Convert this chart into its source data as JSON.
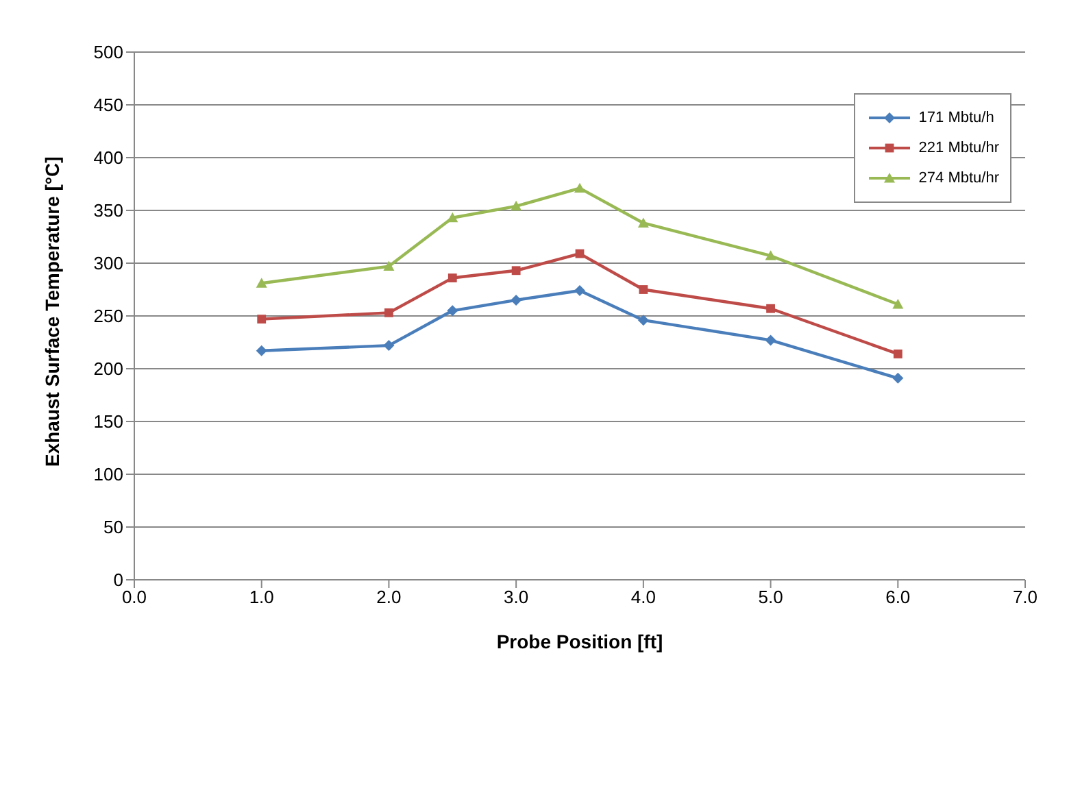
{
  "chart_data": {
    "type": "line",
    "xlabel": "Probe Position [ft]",
    "ylabel": "Exhaust Surface Temperature [°C]",
    "x": [
      1.0,
      2.0,
      2.5,
      3.0,
      3.5,
      4.0,
      5.0,
      6.0
    ],
    "series": [
      {
        "name": "171 Mbtu/h",
        "color": "#4a7ebb",
        "marker": "diamond",
        "values": [
          217,
          222,
          255,
          265,
          274,
          246,
          227,
          191
        ]
      },
      {
        "name": "221 Mbtu/hr",
        "color": "#be4b48",
        "marker": "square",
        "values": [
          247,
          253,
          286,
          293,
          309,
          275,
          257,
          214
        ]
      },
      {
        "name": "274 Mbtu/hr",
        "color": "#98b954",
        "marker": "triangle",
        "values": [
          281,
          297,
          343,
          354,
          371,
          338,
          307,
          261
        ]
      }
    ],
    "xlim": [
      0,
      7
    ],
    "xticks": [
      {
        "value": 0,
        "label": "0.0"
      },
      {
        "value": 1,
        "label": "1.0"
      },
      {
        "value": 2,
        "label": "2.0"
      },
      {
        "value": 3,
        "label": "3.0"
      },
      {
        "value": 4,
        "label": "4.0"
      },
      {
        "value": 5,
        "label": "5.0"
      },
      {
        "value": 6,
        "label": "6.0"
      },
      {
        "value": 7,
        "label": "7.0"
      }
    ],
    "ylim": [
      0,
      500
    ],
    "yticks": [
      0,
      50,
      100,
      150,
      200,
      250,
      300,
      350,
      400,
      450,
      500
    ],
    "grid": "y",
    "legend": "top right",
    "line_style": "solid"
  }
}
